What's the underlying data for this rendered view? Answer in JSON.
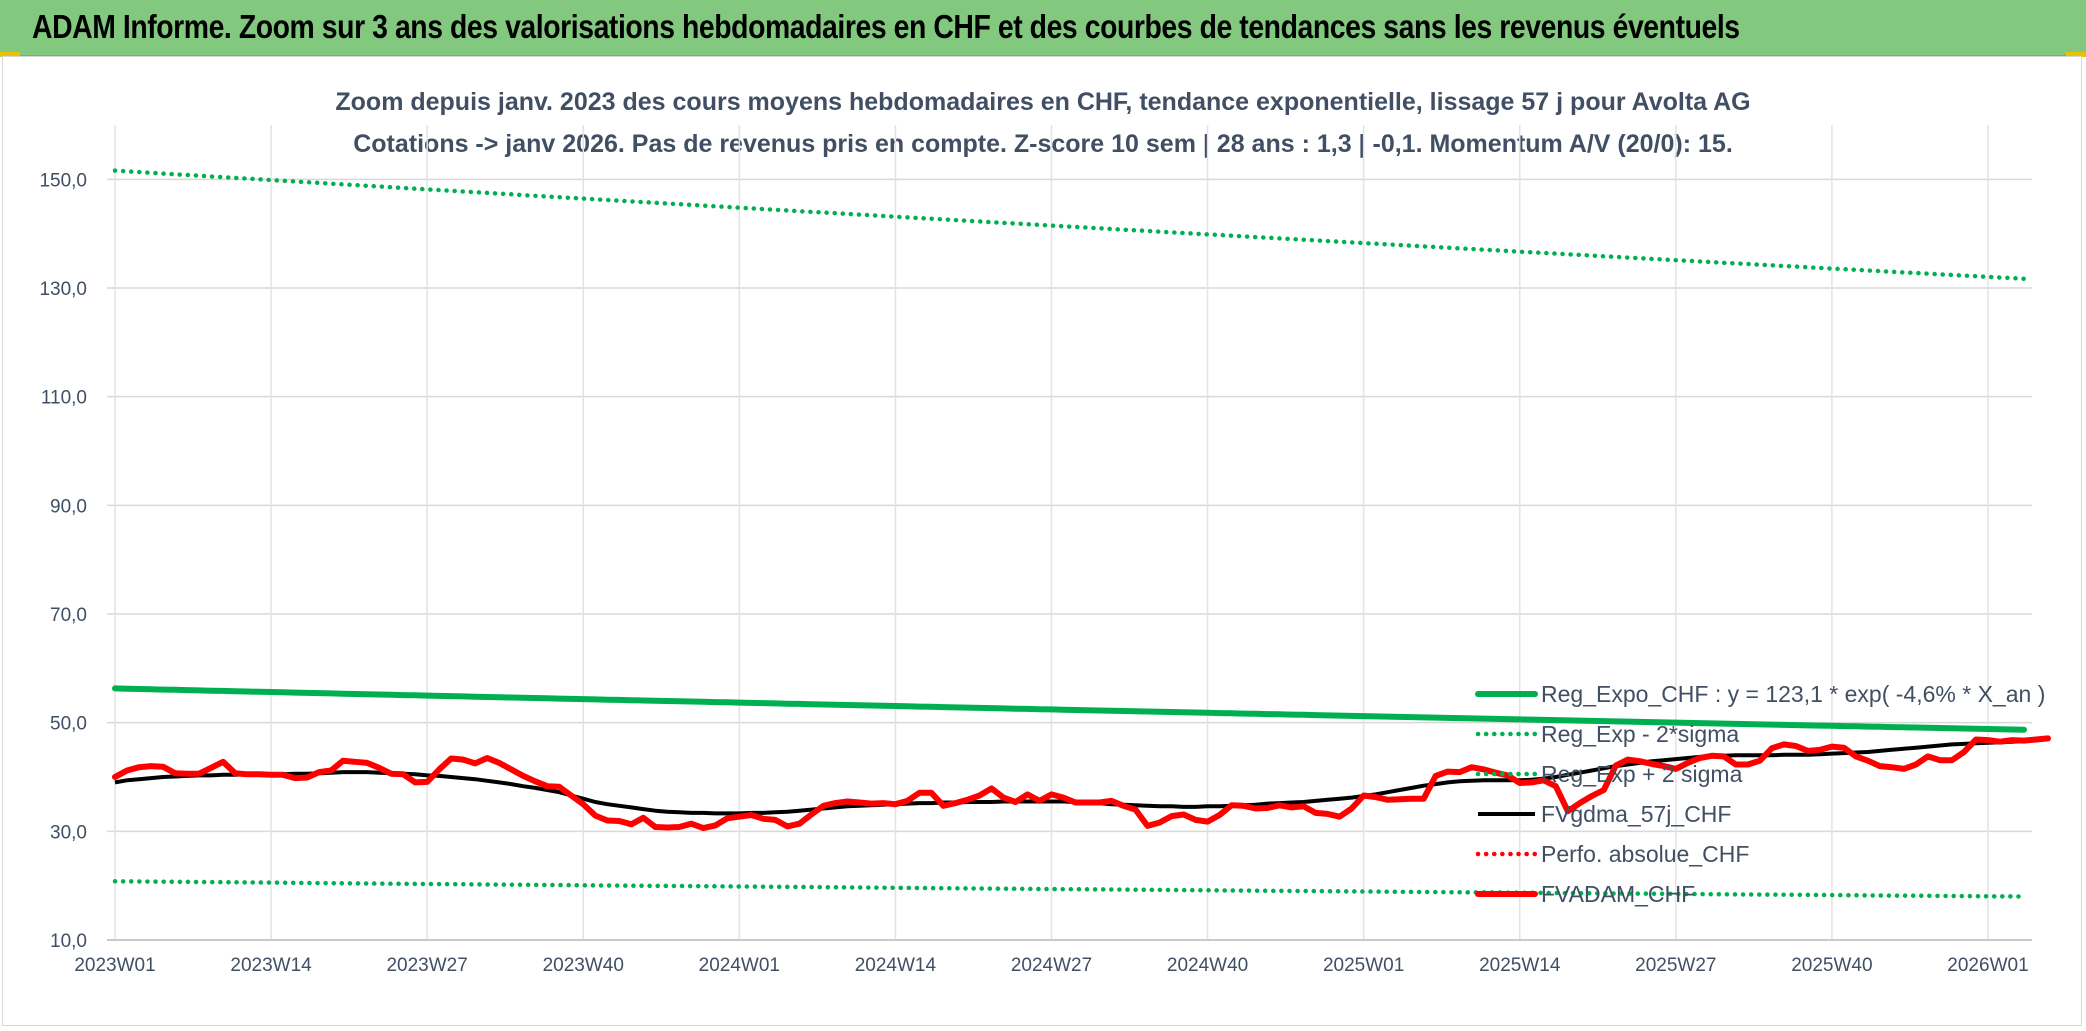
{
  "header": {
    "title": "ADAM Informe. Zoom sur 3 ans des valorisations hebdomadaires en CHF et des courbes de tendances sans les revenus éventuels"
  },
  "chart_data": {
    "type": "line",
    "title_line1": "Zoom depuis janv. 2023 des cours moyens hebdomadaires en CHF, tendance exponentielle, lissage 57 j pour Avolta AG",
    "title_line2": "Cotations -> janv 2026. Pas de revenus pris en compte. Z-score 10 sem | 28 ans : 1,3 | -0,1. Momentum A/V (20/0): 15.",
    "ylim": [
      10,
      160
    ],
    "y_ticks": [
      10,
      30,
      50,
      70,
      90,
      110,
      130,
      150
    ],
    "y_tick_labels": [
      "10,0",
      "30,0",
      "50,0",
      "70,0",
      "90,0",
      "110,0",
      "130,0",
      "150,0"
    ],
    "x_count": 160,
    "x_tick_labels": [
      "2023W01",
      "2023W14",
      "2023W27",
      "2023W40",
      "2024W01",
      "2024W14",
      "2024W27",
      "2024W40",
      "2025W01",
      "2025W14",
      "2025W27",
      "2025W40",
      "2026W01"
    ],
    "x_tick_index": [
      0,
      13,
      26,
      39,
      52,
      65,
      78,
      91,
      104,
      117,
      130,
      143,
      156
    ],
    "grid": true,
    "legend_position": "bottom-right",
    "colors": {
      "reg_expo": "#00b050",
      "fvgdma": "#000000",
      "perfo": "#ff0000",
      "fvadam": "#ff0000",
      "grid": "#d9d9d9",
      "text": "#404f63"
    },
    "series": [
      {
        "name": "Reg_Expo_CHF : y = 123,1 * exp( -4,6% *  X_an )",
        "style": "solid-thick",
        "color": "#00b050",
        "endpoints": [
          56.3,
          48.7
        ]
      },
      {
        "name": "Reg_Exp - 2*sigma",
        "style": "dotted",
        "color": "#00b050",
        "endpoints": [
          20.8,
          18.0
        ]
      },
      {
        "name": "Reg_Exp + 2 sigma",
        "style": "dotted",
        "color": "#00b050",
        "endpoints": [
          151.6,
          131.7
        ]
      },
      {
        "name": "FVgdma_57j_CHF",
        "style": "solid",
        "color": "#000000",
        "values": [
          39.0,
          39.4,
          39.6,
          39.8,
          40.0,
          40.1,
          40.2,
          40.3,
          40.3,
          40.4,
          40.4,
          40.5,
          40.5,
          40.5,
          40.5,
          40.6,
          40.6,
          40.7,
          40.8,
          40.9,
          40.9,
          40.9,
          40.8,
          40.7,
          40.6,
          40.5,
          40.3,
          40.2,
          40.0,
          39.8,
          39.6,
          39.3,
          39.0,
          38.7,
          38.3,
          38.0,
          37.6,
          37.2,
          36.6,
          36.0,
          35.4,
          35.0,
          34.7,
          34.4,
          34.1,
          33.8,
          33.6,
          33.5,
          33.4,
          33.4,
          33.3,
          33.3,
          33.3,
          33.4,
          33.4,
          33.5,
          33.6,
          33.8,
          34.0,
          34.2,
          34.4,
          34.6,
          34.7,
          34.8,
          34.9,
          35.0,
          35.1,
          35.2,
          35.2,
          35.3,
          35.3,
          35.4,
          35.4,
          35.4,
          35.5,
          35.5,
          35.5,
          35.5,
          35.5,
          35.5,
          35.4,
          35.3,
          35.2,
          35.0,
          34.9,
          34.8,
          34.7,
          34.6,
          34.6,
          34.5,
          34.5,
          34.6,
          34.6,
          34.7,
          34.8,
          34.9,
          35.1,
          35.2,
          35.3,
          35.4,
          35.6,
          35.8,
          36.0,
          36.2,
          36.5,
          36.8,
          37.2,
          37.6,
          38.0,
          38.4,
          38.7,
          39.0,
          39.2,
          39.3,
          39.4,
          39.4,
          39.4,
          39.4,
          39.5,
          39.7,
          40.0,
          40.4,
          40.8,
          41.2,
          41.6,
          42.0,
          42.3,
          42.6,
          42.9,
          43.1,
          43.3,
          43.5,
          43.7,
          43.8,
          43.9,
          44.0,
          44.0,
          44.0,
          44.0,
          44.1,
          44.1,
          44.1,
          44.2,
          44.3,
          44.4,
          44.5,
          44.6,
          44.8,
          45.0,
          45.2,
          45.4,
          45.6,
          45.8,
          46.0,
          46.1,
          46.2,
          46.3,
          46.4,
          46.5,
          46.6
        ]
      },
      {
        "name": "Perfo. absolue_CHF",
        "style": "dotted",
        "color": "#ff0000",
        "values": []
      },
      {
        "name": "FVADAM_CHF",
        "style": "solid-thick",
        "color": "#ff0000",
        "values": [
          40.0,
          41.2,
          41.8,
          42.0,
          41.9,
          40.7,
          40.6,
          40.6,
          41.7,
          42.8,
          40.7,
          40.5,
          40.5,
          40.4,
          40.4,
          39.8,
          39.9,
          40.9,
          41.2,
          43.0,
          42.8,
          42.6,
          41.7,
          40.6,
          40.5,
          39.0,
          39.1,
          41.4,
          43.4,
          43.2,
          42.5,
          43.5,
          42.6,
          41.4,
          40.2,
          39.2,
          38.3,
          38.2,
          36.6,
          35.0,
          32.9,
          32.0,
          31.9,
          31.3,
          32.5,
          30.8,
          30.7,
          30.8,
          31.4,
          30.6,
          31.1,
          32.4,
          32.7,
          33.0,
          32.3,
          32.1,
          30.9,
          31.4,
          33.1,
          34.7,
          35.2,
          35.5,
          35.3,
          35.1,
          35.2,
          35.0,
          35.6,
          37.1,
          37.1,
          34.7,
          35.2,
          35.8,
          36.6,
          37.9,
          36.2,
          35.4,
          36.8,
          35.6,
          36.8,
          36.2,
          35.3,
          35.3,
          35.3,
          35.6,
          34.7,
          34.0,
          31.0,
          31.6,
          32.8,
          33.1,
          32.1,
          31.8,
          33.0,
          34.8,
          34.7,
          34.2,
          34.3,
          34.8,
          34.4,
          34.6,
          33.4,
          33.2,
          32.7,
          34.2,
          36.6,
          36.3,
          35.8,
          35.9,
          36.0,
          36.0,
          40.2,
          41.0,
          40.9,
          41.8,
          41.4,
          40.8,
          40.3,
          38.9,
          39.0,
          39.4,
          38.3,
          33.7,
          35.2,
          36.5,
          37.6,
          42.1,
          43.2,
          42.9,
          42.4,
          42.0,
          41.5,
          42.6,
          43.5,
          43.9,
          43.8,
          42.3,
          42.3,
          43.0,
          45.3,
          46.0,
          45.7,
          44.8,
          45.0,
          45.6,
          45.4,
          43.8,
          43.0,
          42.0,
          41.8,
          41.5,
          42.3,
          43.8,
          43.1,
          43.1,
          44.6,
          46.9,
          46.8,
          46.5,
          46.8,
          46.7,
          46.9,
          47.1
        ]
      }
    ]
  }
}
